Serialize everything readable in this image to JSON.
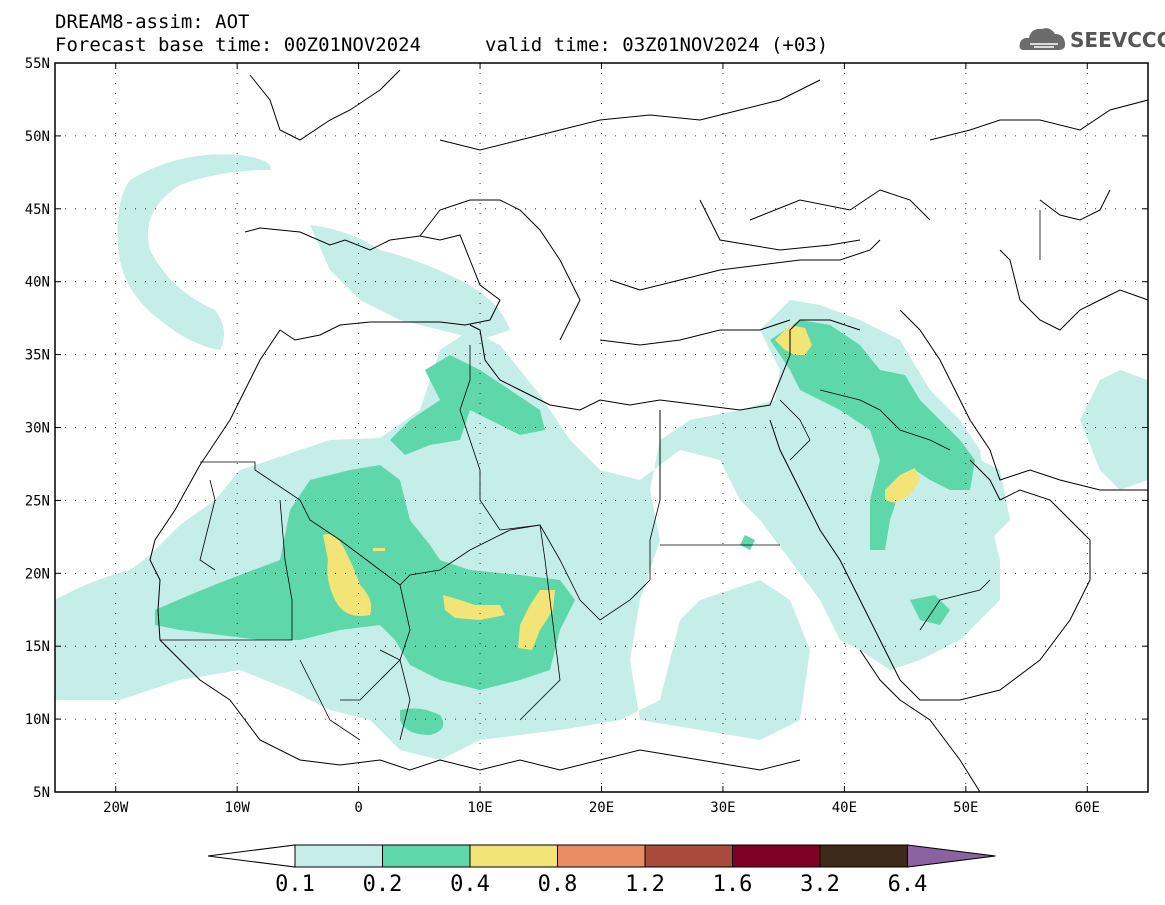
{
  "header": {
    "title_line1": "DREAM8-assim: AOT",
    "base_time": "Forecast base time: 00Z01NOV2024",
    "valid_time": "valid time: 03Z01NOV2024 (+03)",
    "logo_text": "SEEVCCC",
    "logo_icon": "cloud-icon"
  },
  "map": {
    "lat_labels": [
      "55N",
      "50N",
      "45N",
      "40N",
      "35N",
      "30N",
      "25N",
      "20N",
      "15N",
      "10N",
      "5N"
    ],
    "lon_labels": [
      "20W",
      "10W",
      "0",
      "10E",
      "20E",
      "30E",
      "40E",
      "50E",
      "60E"
    ],
    "lat_range": [
      5,
      55
    ],
    "lon_range": [
      -25,
      65
    ],
    "grid": "dotted"
  },
  "legend": {
    "levels": [
      "0.1",
      "0.2",
      "0.4",
      "0.8",
      "1.2",
      "1.6",
      "3.2",
      "6.4"
    ],
    "colors": [
      "#ffffff",
      "#c5eee9",
      "#5ed8ab",
      "#f2e477",
      "#e98d64",
      "#a84a3c",
      "#800022",
      "#3e2a18",
      "#8a62a0"
    ]
  }
}
